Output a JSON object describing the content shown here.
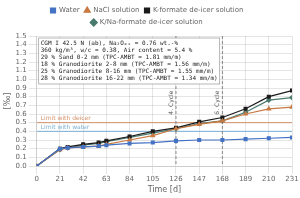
{
  "chart_data": {
    "type": "line",
    "xlabel": "Time [d]",
    "ylabel": "[‰]",
    "x": [
      0,
      21,
      28,
      42,
      56,
      63,
      84,
      105,
      126,
      147,
      168,
      189,
      210,
      231
    ],
    "series": [
      {
        "name": "Water",
        "color": "#4472c4",
        "marker": "square",
        "values": [
          0.0,
          0.2,
          0.21,
          0.22,
          0.23,
          0.24,
          0.26,
          0.27,
          0.29,
          0.3,
          0.3,
          0.31,
          0.32,
          0.33
        ]
      },
      {
        "name": "NaCl solution",
        "color": "#c87941",
        "marker": "triangle",
        "values": [
          0.0,
          0.19,
          0.21,
          0.22,
          0.23,
          0.25,
          0.3,
          0.35,
          0.43,
          0.48,
          0.52,
          0.6,
          0.66,
          0.68
        ]
      },
      {
        "name": "K-formate de-icer solution",
        "color": "#1a1a1a",
        "marker": "square",
        "values": [
          0.0,
          0.2,
          0.22,
          0.25,
          0.27,
          0.29,
          0.34,
          0.4,
          0.44,
          0.51,
          0.56,
          0.66,
          0.8,
          0.87
        ]
      },
      {
        "name": "K/Na-formate de-icer solution",
        "color": "#4a7a6e",
        "marker": "diamond",
        "values": [
          0.0,
          0.19,
          0.21,
          0.24,
          0.26,
          0.28,
          0.33,
          0.38,
          0.43,
          0.49,
          0.52,
          0.62,
          0.76,
          0.79
        ]
      }
    ],
    "xlim": [
      0,
      231
    ],
    "xticks": [
      0,
      21,
      42,
      63,
      84,
      105,
      126,
      147,
      168,
      189,
      210,
      231
    ],
    "ylim": [
      0.0,
      1.5
    ],
    "yticks": [
      {
        "value": 0.0,
        "label": "0.0"
      },
      0.1,
      0.2,
      0.3,
      0.4,
      0.5,
      0.6,
      0.7,
      0.8,
      0.9,
      {
        "value": 1.0,
        "label": "1.0"
      },
      1.1,
      1.2,
      1.3,
      1.4,
      1.5
    ],
    "grid": true,
    "legend": "top",
    "annotations": [
      {
        "type": "text_box",
        "text": [
          "CGM I 42.5 N (ab), Na₂Oₑₓ = 0.76 wt.-%",
          "360 kg/m³, w/c = 0.38, Air content = 5.4 %",
          "29 % Sand 0-2 mm (TPC-AMBT = 1.81 mm/m)",
          "18 % Granodiorite 2-8 mm (TPC-AMBT = 1.56 mm/m)",
          "25 % Granodiorite 8-16 mm (TPC-AMBT = 1.55 mm/m)",
          "28 % Granodiorite 16-22 mm (TPC-AMBT = 1.34 mm/m)"
        ]
      },
      {
        "type": "hline",
        "y": 0.5,
        "label": "Limit with deicer",
        "color": "#d4916a",
        "line_style": "solid"
      },
      {
        "type": "hline",
        "y": 0.4,
        "label": "Limit with water",
        "color": "#7bafd4",
        "line_style": "solid"
      },
      {
        "type": "vline",
        "x": 126,
        "label": "4. Cycle",
        "color": "#888888",
        "line_style": "dashed"
      },
      {
        "type": "vline",
        "x": 168,
        "label": "6. Cycle",
        "color": "#888888",
        "line_style": "dashed"
      }
    ]
  }
}
